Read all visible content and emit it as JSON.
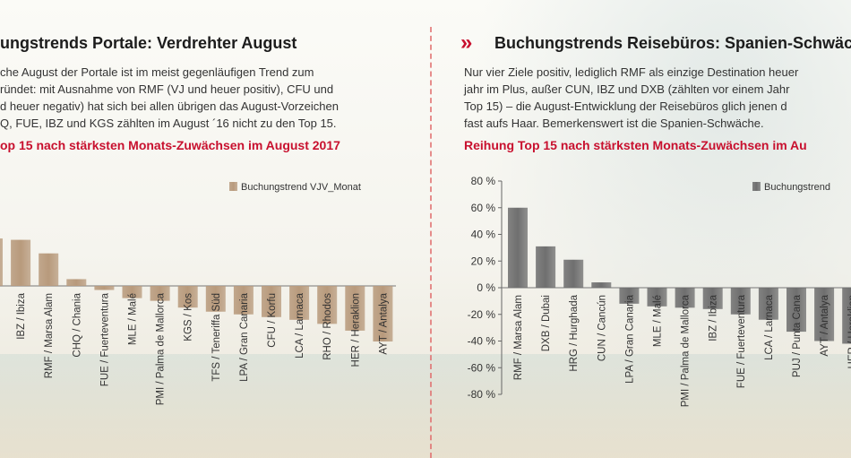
{
  "left": {
    "title": "ungstrends Portale: Verdrehter August",
    "paragraph": [
      "che August der Portale ist im meist gegenläufigen Trend zum",
      "ründet: mit Ausnahme von RMF (VJ und heuer positiv), CFU und",
      "d heuer negativ) hat sich bei allen übrigen das August-Vorzeichen",
      "Q, FUE, IBZ und KGS zählten im August ´16 nicht zu den Top 15."
    ],
    "subtitle": "op 15 nach stärksten Monats-Zuwächsen im August 2017",
    "chart_data": {
      "type": "bar",
      "legend": "Buchungstrend VJV_Monat",
      "bar_color": "#b89a7c",
      "categories": [
        "",
        "IBZ / Ibiza",
        "RMF / Marsa Alam",
        "CHQ / Chania",
        "FUE / Fuerteventura",
        "MLE / Malé",
        "PMI / Palma de Mallorca",
        "KGS / Kos",
        "TFS / Teneriffa Süd",
        "LPA / Gran Canaria",
        "CFU / Korfu",
        "LCA / Larnaca",
        "RHO / Rhodos",
        "HER / Heraklion",
        "AYT / Antalya"
      ],
      "values": [
        35,
        34,
        24,
        5,
        -3,
        -9,
        -11,
        -16,
        -19,
        -21,
        -23,
        -25,
        -28,
        -33,
        -41
      ],
      "ylim": [
        -80,
        80
      ]
    }
  },
  "right": {
    "arrow": "»",
    "title": "Buchungstrends Reisebüros: Spanien-Schwäche",
    "paragraph": [
      "Nur vier Ziele positiv, lediglich RMF als einzige Destination heuer",
      "jahr im Plus, außer CUN, IBZ und DXB (zählten vor einem Jahr",
      "Top 15)  – die August-Entwicklung der Reisebüros glich jenen d",
      "fast aufs Haar. Bemerkenswert ist die Spanien-Schwäche."
    ],
    "subtitle": "Reihung Top 15 nach stärksten Monats-Zuwächsen im Au",
    "chart_data": {
      "type": "bar",
      "legend": "Buchungstrend",
      "bar_color": "#6f6f6f",
      "ylim": [
        -80,
        80
      ],
      "yticks": [
        "80 %",
        "60 %",
        "40 %",
        "20 %",
        "0 %",
        "-20 %",
        "-40 %",
        "-60 %",
        "-80 %"
      ],
      "categories": [
        "RMF / Marsa Alam",
        "DXB / Dubai",
        "HRG / Hurghada",
        "CUN / Cancún",
        "LPA / Gran Canaria",
        "MLE / Malé",
        "PMI / Palma de Mallorca",
        "IBZ / Ibiza",
        "FUE / Fuerteventura",
        "LCA / Larnaca",
        "PUJ / Punta Cana",
        "AYT / Antalya",
        "HER / Heraklion"
      ],
      "values": [
        60,
        31,
        21,
        4,
        -12,
        -14,
        -15,
        -16,
        -20,
        -24,
        -33,
        -40,
        -42
      ]
    }
  }
}
